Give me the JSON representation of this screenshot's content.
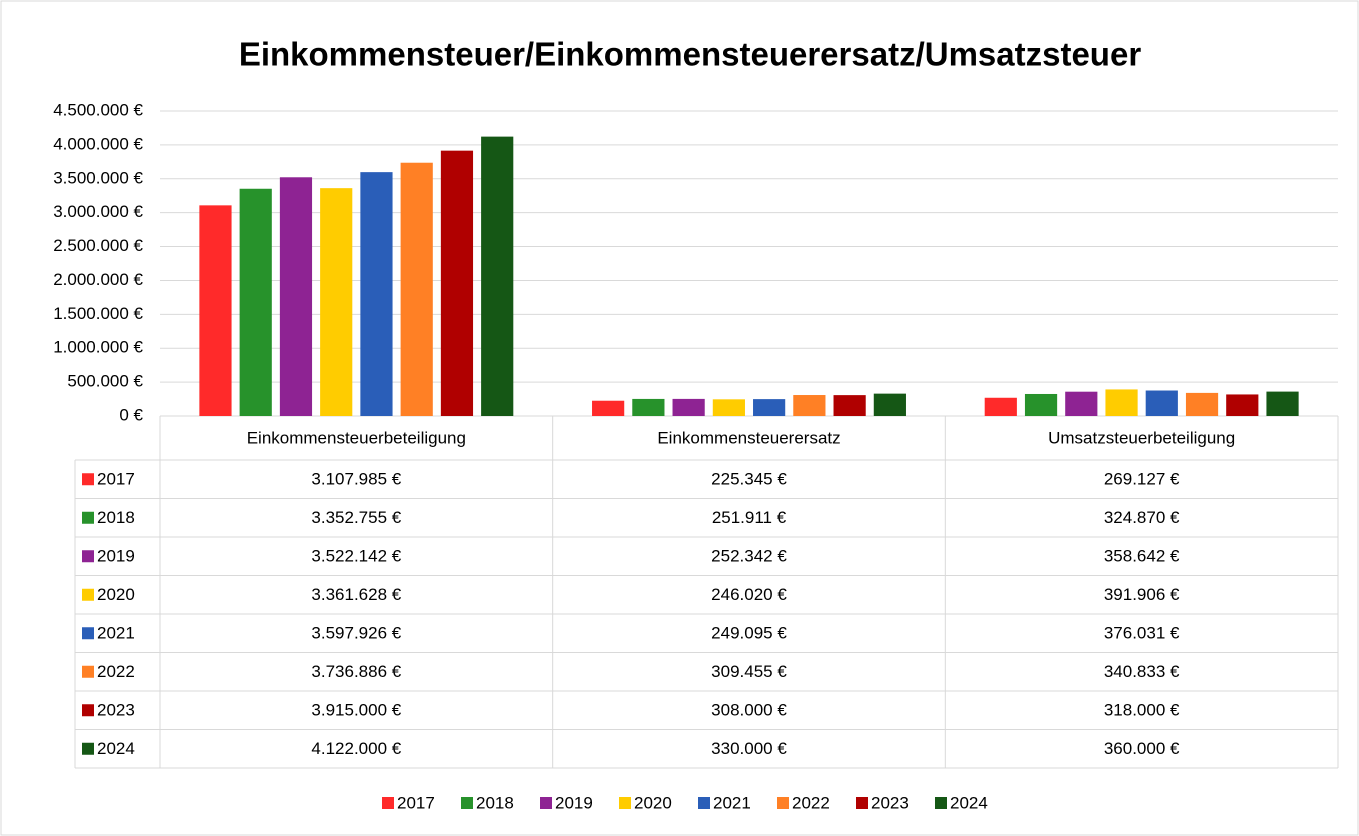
{
  "chart_data": {
    "type": "bar",
    "title": "Einkommensteuer/Einkommensteuerersatz/Umsatzsteuer",
    "categories": [
      "Einkommensteuerbeteiligung",
      "Einkommensteuerersatz",
      "Umsatzsteuerbeteiligung"
    ],
    "series": [
      {
        "name": "2017",
        "color": "#ff2a2a",
        "values": [
          3107985,
          225345,
          269127
        ],
        "value_labels": [
          "3.107.985 €",
          "225.345 €",
          "269.127 €"
        ]
      },
      {
        "name": "2018",
        "color": "#27922b",
        "values": [
          3352755,
          251911,
          324870
        ],
        "value_labels": [
          "3.352.755 €",
          "251.911 €",
          "324.870 €"
        ]
      },
      {
        "name": "2019",
        "color": "#8e2393",
        "values": [
          3522142,
          252342,
          358642
        ],
        "value_labels": [
          "3.522.142 €",
          "252.342 €",
          "358.642 €"
        ]
      },
      {
        "name": "2020",
        "color": "#ffcc00",
        "values": [
          3361628,
          246020,
          391906
        ],
        "value_labels": [
          "3.361.628 €",
          "246.020 €",
          "391.906 €"
        ]
      },
      {
        "name": "2021",
        "color": "#2a5eb8",
        "values": [
          3597926,
          249095,
          376031
        ],
        "value_labels": [
          "3.597.926 €",
          "249.095 €",
          "376.031 €"
        ]
      },
      {
        "name": "2022",
        "color": "#ff8025",
        "values": [
          3736886,
          309455,
          340833
        ],
        "value_labels": [
          "3.736.886 €",
          "309.455 €",
          "340.833 €"
        ]
      },
      {
        "name": "2023",
        "color": "#b00000",
        "values": [
          3915000,
          308000,
          318000
        ],
        "value_labels": [
          "3.915.000 €",
          "308.000 €",
          "318.000 €"
        ]
      },
      {
        "name": "2024",
        "color": "#155715",
        "values": [
          4122000,
          330000,
          360000
        ],
        "value_labels": [
          "4.122.000 €",
          "330.000 €",
          "360.000 €"
        ]
      }
    ],
    "ylim": [
      0,
      4500000
    ],
    "yticks": [
      {
        "value": 0,
        "label": "0 €"
      },
      {
        "value": 500000,
        "label": "500.000 €"
      },
      {
        "value": 1000000,
        "label": "1.000.000 €"
      },
      {
        "value": 1500000,
        "label": "1.500.000 €"
      },
      {
        "value": 2000000,
        "label": "2.000.000 €"
      },
      {
        "value": 2500000,
        "label": "2.500.000 €"
      },
      {
        "value": 3000000,
        "label": "3.000.000 €"
      },
      {
        "value": 3500000,
        "label": "3.500.000 €"
      },
      {
        "value": 4000000,
        "label": "4.000.000 €"
      },
      {
        "value": 4500000,
        "label": "4.500.000 €"
      }
    ],
    "grid": true,
    "legend": "bottom"
  }
}
